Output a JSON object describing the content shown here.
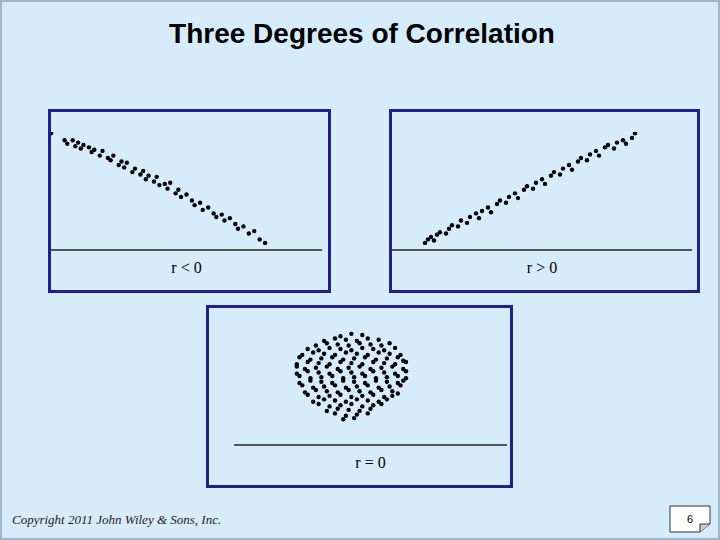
{
  "title": "Three Degrees of Correlation",
  "footer": "Copyright 2011 John Wiley & Sons, Inc.",
  "page_number": 6,
  "chart_data": [
    {
      "type": "scatter",
      "xlabel": "r < 0",
      "color": "#000000",
      "xlim": [
        0,
        100
      ],
      "ylim": [
        0,
        100
      ],
      "tick_labels": false,
      "grid": false,
      "x": [
        0,
        5,
        6,
        8,
        9,
        10,
        11,
        12,
        14,
        15,
        16,
        18,
        19,
        21,
        22,
        23,
        25,
        26,
        27,
        28,
        30,
        31,
        33,
        34,
        35,
        36,
        38,
        39,
        40,
        42,
        43,
        44,
        46,
        47,
        48,
        50,
        52,
        53,
        55,
        56,
        58,
        60,
        61,
        63,
        64,
        66,
        68,
        69,
        71,
        73,
        75,
        77,
        79
      ],
      "values": [
        99,
        93,
        90,
        93,
        88,
        91,
        86,
        89,
        87,
        83,
        85,
        80,
        84,
        78,
        76,
        80,
        72,
        75,
        70,
        74,
        66,
        69,
        64,
        67,
        60,
        63,
        58,
        62,
        55,
        56,
        52,
        57,
        48,
        51,
        45,
        47,
        42,
        38,
        40,
        34,
        36,
        31,
        28,
        30,
        25,
        27,
        22,
        18,
        20,
        14,
        16,
        9,
        6
      ]
    },
    {
      "type": "scatter",
      "xlabel": "r > 0",
      "color": "#000000",
      "xlim": [
        0,
        100
      ],
      "ylim": [
        0,
        100
      ],
      "tick_labels": false,
      "grid": false,
      "x": [
        11,
        12,
        13,
        14,
        15,
        16,
        18,
        19,
        20,
        22,
        23,
        25,
        26,
        28,
        29,
        30,
        32,
        33,
        35,
        36,
        38,
        39,
        41,
        42,
        44,
        45,
        47,
        48,
        50,
        51,
        53,
        54,
        56,
        57,
        59,
        60,
        62,
        63,
        65,
        66,
        68,
        69,
        71,
        72,
        74,
        75,
        77,
        78,
        80,
        81
      ],
      "values": [
        6,
        9,
        11,
        8,
        13,
        15,
        14,
        18,
        21,
        20,
        25,
        23,
        28,
        31,
        27,
        33,
        36,
        32,
        39,
        42,
        40,
        45,
        48,
        44,
        51,
        54,
        52,
        57,
        60,
        56,
        63,
        66,
        64,
        69,
        72,
        68,
        75,
        78,
        76,
        81,
        84,
        80,
        87,
        89,
        86,
        91,
        93,
        90,
        95,
        99
      ]
    },
    {
      "type": "scatter",
      "xlabel": "r = 0",
      "color": "#000000",
      "xlim": [
        5,
        105
      ],
      "ylim": [
        0,
        100
      ],
      "tick_labels": false,
      "grid": false,
      "x": [
        44,
        48,
        52,
        38,
        42,
        46,
        50,
        54,
        58,
        35,
        39,
        43,
        47,
        51,
        55,
        59,
        62,
        32,
        36,
        40,
        44,
        48,
        52,
        56,
        60,
        64,
        30,
        34,
        38,
        42,
        46,
        50,
        54,
        58,
        62,
        66,
        29,
        33,
        37,
        41,
        45,
        49,
        53,
        57,
        61,
        65,
        67,
        28,
        32,
        36,
        40,
        44,
        48,
        52,
        56,
        60,
        64,
        68,
        28,
        31,
        35,
        39,
        43,
        47,
        51,
        55,
        59,
        63,
        67,
        28,
        32,
        36,
        40,
        44,
        48,
        52,
        56,
        60,
        64,
        68,
        29,
        33,
        37,
        41,
        45,
        49,
        53,
        57,
        61,
        65,
        68,
        29,
        33,
        37,
        41,
        45,
        49,
        53,
        57,
        61,
        65,
        67,
        30,
        34,
        38,
        42,
        46,
        50,
        54,
        58,
        62,
        66,
        31,
        35,
        39,
        43,
        47,
        51,
        55,
        59,
        63,
        65,
        32,
        36,
        40,
        44,
        48,
        52,
        56,
        60,
        63,
        34,
        38,
        42,
        46,
        50,
        54,
        58,
        61,
        36,
        40,
        44,
        48,
        52,
        56,
        59,
        39,
        43,
        47,
        51,
        55,
        42,
        46,
        50,
        54,
        45,
        49
      ],
      "values": [
        93,
        95,
        94,
        89,
        91,
        90,
        89,
        91,
        90,
        85,
        87,
        86,
        85,
        87,
        86,
        85,
        87,
        82,
        81,
        83,
        82,
        81,
        83,
        82,
        81,
        83,
        77,
        79,
        78,
        77,
        79,
        78,
        77,
        79,
        78,
        77,
        75,
        73,
        74,
        75,
        73,
        74,
        75,
        73,
        74,
        75,
        72,
        69,
        71,
        70,
        69,
        71,
        70,
        69,
        71,
        70,
        69,
        71,
        67,
        65,
        66,
        67,
        65,
        66,
        67,
        65,
        66,
        67,
        65,
        61,
        63,
        62,
        61,
        63,
        62,
        61,
        63,
        62,
        61,
        63,
        59,
        57,
        58,
        59,
        57,
        58,
        59,
        57,
        58,
        59,
        57,
        53,
        55,
        54,
        53,
        55,
        54,
        53,
        55,
        54,
        53,
        55,
        51,
        49,
        50,
        51,
        49,
        50,
        51,
        49,
        50,
        51,
        45,
        47,
        46,
        45,
        47,
        46,
        45,
        47,
        46,
        44,
        43,
        41,
        42,
        43,
        41,
        42,
        43,
        41,
        42,
        37,
        39,
        38,
        37,
        39,
        38,
        37,
        39,
        35,
        33,
        34,
        35,
        33,
        34,
        35,
        29,
        31,
        30,
        29,
        31,
        27,
        25,
        26,
        27,
        22,
        23
      ]
    }
  ]
}
